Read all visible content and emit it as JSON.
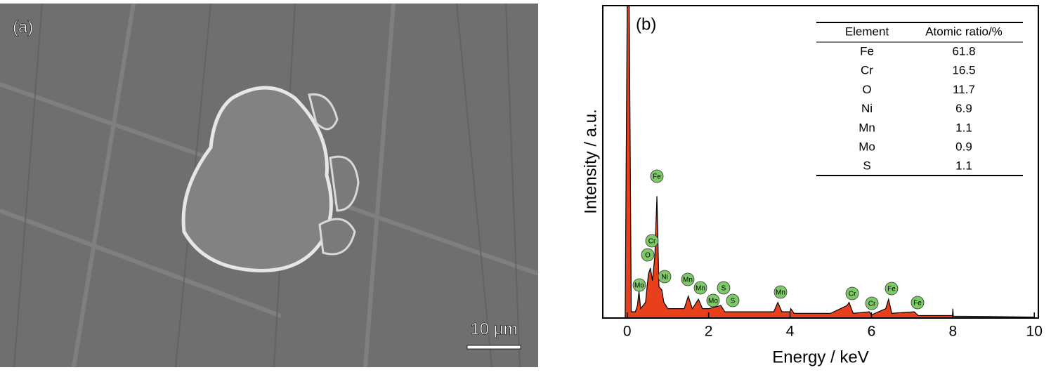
{
  "panel_a": {
    "label": "(a)",
    "scale_bar": "10 μm"
  },
  "chart_data": {
    "type": "area",
    "label": "(b)",
    "x_label": "Energy / keV",
    "y_label": "Intensity / a.u.",
    "color": "#e8401c",
    "x": [
      -0.05,
      0,
      0.05,
      0.1,
      0.2,
      0.25,
      0.29,
      0.33,
      0.45,
      0.52,
      0.57,
      0.62,
      0.68,
      0.73,
      0.78,
      0.85,
      0.9,
      1.0,
      1.2,
      1.4,
      1.5,
      1.6,
      1.75,
      1.85,
      2.0,
      2.3,
      2.4,
      3.0,
      3.6,
      3.7,
      3.8,
      4.0,
      4.02,
      4.1,
      5.0,
      5.4,
      5.45,
      5.55,
      5.95,
      6.0,
      6.35,
      6.42,
      6.5,
      7.05,
      7.15,
      7.99,
      8.0,
      8.01,
      8.8,
      10
    ],
    "values": [
      0,
      100,
      100,
      2,
      2,
      4,
      8.5,
      3,
      5,
      14,
      16,
      12,
      20,
      39,
      10,
      9,
      5,
      3,
      3,
      3,
      7,
      3,
      6,
      3,
      3,
      4,
      2,
      2,
      2,
      5,
      2,
      2,
      3,
      1.5,
      1.5,
      4,
      5,
      1.5,
      2,
      1,
      3,
      6,
      1.5,
      2,
      0.8,
      0.8,
      3,
      0.6,
      0.5,
      0.3
    ],
    "xlim": [
      -0.6,
      10.1
    ],
    "ylim": [
      0,
      100
    ],
    "xticks": [
      0,
      2,
      4,
      6,
      8,
      10
    ],
    "peak_labels": [
      "Fe",
      "Cr",
      "O",
      "Ni",
      "Mo",
      "Mn",
      "Mn",
      "Mo",
      "S",
      "S",
      "Mn",
      "Cr",
      "Cr",
      "Fe",
      "Fe"
    ],
    "table": {
      "header": [
        "Element",
        "Atomic ratio/%"
      ],
      "rows": [
        [
          "Fe",
          61.8
        ],
        [
          "Cr",
          16.5
        ],
        [
          "O",
          11.7
        ],
        [
          "Ni",
          6.9
        ],
        [
          "Mn",
          1.1
        ],
        [
          "Mo",
          0.9
        ],
        [
          "S",
          1.1
        ]
      ]
    }
  }
}
